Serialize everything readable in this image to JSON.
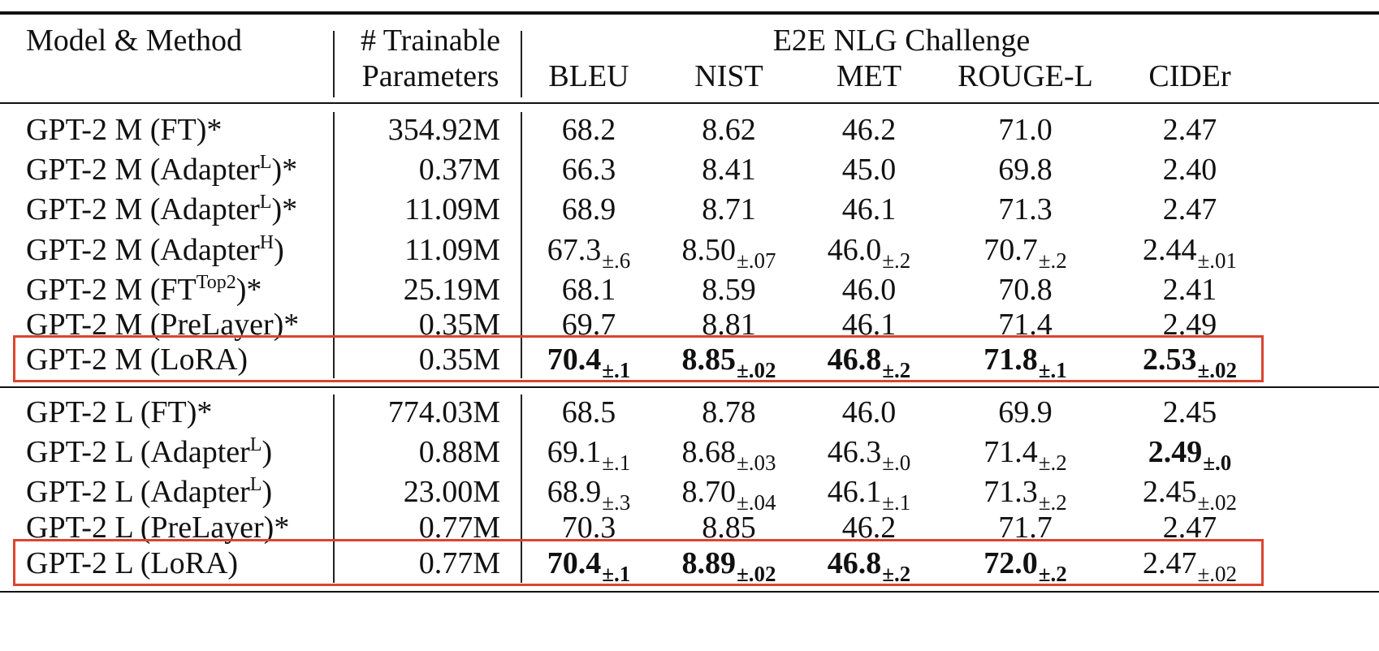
{
  "header": {
    "model_method": "Model & Method",
    "params_line1": "# Trainable",
    "params_line2": "Parameters",
    "group_title": "E2E NLG Challenge",
    "metrics": [
      "BLEU",
      "NIST",
      "MET",
      "ROUGE-L",
      "CIDEr"
    ]
  },
  "groups": [
    {
      "rows": [
        {
          "base": "GPT-2 M (FT",
          "sup": "",
          "tail": ")*",
          "params": "354.92M",
          "highlight": false,
          "vals": [
            {
              "m": "68.2",
              "s": "",
              "b": false
            },
            {
              "m": "8.62",
              "s": "",
              "b": false
            },
            {
              "m": "46.2",
              "s": "",
              "b": false
            },
            {
              "m": "71.0",
              "s": "",
              "b": false
            },
            {
              "m": "2.47",
              "s": "",
              "b": false
            }
          ]
        },
        {
          "base": "GPT-2 M (Adapter",
          "sup": "L",
          "tail": ")*",
          "params": "0.37M",
          "highlight": false,
          "vals": [
            {
              "m": "66.3",
              "s": "",
              "b": false
            },
            {
              "m": "8.41",
              "s": "",
              "b": false
            },
            {
              "m": "45.0",
              "s": "",
              "b": false
            },
            {
              "m": "69.8",
              "s": "",
              "b": false
            },
            {
              "m": "2.40",
              "s": "",
              "b": false
            }
          ]
        },
        {
          "base": "GPT-2 M (Adapter",
          "sup": "L",
          "tail": ")*",
          "params": "11.09M",
          "highlight": false,
          "vals": [
            {
              "m": "68.9",
              "s": "",
              "b": false
            },
            {
              "m": "8.71",
              "s": "",
              "b": false
            },
            {
              "m": "46.1",
              "s": "",
              "b": false
            },
            {
              "m": "71.3",
              "s": "",
              "b": false
            },
            {
              "m": "2.47",
              "s": "",
              "b": false
            }
          ]
        },
        {
          "base": "GPT-2 M (Adapter",
          "sup": "H",
          "tail": ")",
          "params": "11.09M",
          "highlight": false,
          "vals": [
            {
              "m": "67.3",
              "s": "±.6",
              "b": false
            },
            {
              "m": "8.50",
              "s": "±.07",
              "b": false
            },
            {
              "m": "46.0",
              "s": "±.2",
              "b": false
            },
            {
              "m": "70.7",
              "s": "±.2",
              "b": false
            },
            {
              "m": "2.44",
              "s": "±.01",
              "b": false
            }
          ]
        },
        {
          "base": "GPT-2 M (FT",
          "sup": "Top2",
          "tail": ")*",
          "params": "25.19M",
          "highlight": false,
          "vals": [
            {
              "m": "68.1",
              "s": "",
              "b": false
            },
            {
              "m": "8.59",
              "s": "",
              "b": false
            },
            {
              "m": "46.0",
              "s": "",
              "b": false
            },
            {
              "m": "70.8",
              "s": "",
              "b": false
            },
            {
              "m": "2.41",
              "s": "",
              "b": false
            }
          ]
        },
        {
          "base": "GPT-2 M (PreLayer",
          "sup": "",
          "tail": ")*",
          "params": "0.35M",
          "highlight": false,
          "vals": [
            {
              "m": "69.7",
              "s": "",
              "b": false
            },
            {
              "m": "8.81",
              "s": "",
              "b": false
            },
            {
              "m": "46.1",
              "s": "",
              "b": false
            },
            {
              "m": "71.4",
              "s": "",
              "b": false
            },
            {
              "m": "2.49",
              "s": "",
              "b": false
            }
          ]
        },
        {
          "base": "GPT-2 M (LoRA",
          "sup": "",
          "tail": ")",
          "params": "0.35M",
          "highlight": true,
          "vals": [
            {
              "m": "70.4",
              "s": "±.1",
              "b": true
            },
            {
              "m": "8.85",
              "s": "±.02",
              "b": true
            },
            {
              "m": "46.8",
              "s": "±.2",
              "b": true
            },
            {
              "m": "71.8",
              "s": "±.1",
              "b": true
            },
            {
              "m": "2.53",
              "s": "±.02",
              "b": true
            }
          ]
        }
      ]
    },
    {
      "rows": [
        {
          "base": "GPT-2 L (FT",
          "sup": "",
          "tail": ")*",
          "params": "774.03M",
          "highlight": false,
          "vals": [
            {
              "m": "68.5",
              "s": "",
              "b": false
            },
            {
              "m": "8.78",
              "s": "",
              "b": false
            },
            {
              "m": "46.0",
              "s": "",
              "b": false
            },
            {
              "m": "69.9",
              "s": "",
              "b": false
            },
            {
              "m": "2.45",
              "s": "",
              "b": false
            }
          ]
        },
        {
          "base": "GPT-2 L (Adapter",
          "sup": "L",
          "tail": ")",
          "params": "0.88M",
          "highlight": false,
          "vals": [
            {
              "m": "69.1",
              "s": "±.1",
              "b": false
            },
            {
              "m": "8.68",
              "s": "±.03",
              "b": false
            },
            {
              "m": "46.3",
              "s": "±.0",
              "b": false
            },
            {
              "m": "71.4",
              "s": "±.2",
              "b": false
            },
            {
              "m": "2.49",
              "s": "±.0",
              "b": true
            }
          ]
        },
        {
          "base": "GPT-2 L (Adapter",
          "sup": "L",
          "tail": ")",
          "params": "23.00M",
          "highlight": false,
          "vals": [
            {
              "m": "68.9",
              "s": "±.3",
              "b": false
            },
            {
              "m": "8.70",
              "s": "±.04",
              "b": false
            },
            {
              "m": "46.1",
              "s": "±.1",
              "b": false
            },
            {
              "m": "71.3",
              "s": "±.2",
              "b": false
            },
            {
              "m": "2.45",
              "s": "±.02",
              "b": false
            }
          ]
        },
        {
          "base": "GPT-2 L (PreLayer",
          "sup": "",
          "tail": ")*",
          "params": "0.77M",
          "highlight": false,
          "vals": [
            {
              "m": "70.3",
              "s": "",
              "b": false
            },
            {
              "m": "8.85",
              "s": "",
              "b": false
            },
            {
              "m": "46.2",
              "s": "",
              "b": false
            },
            {
              "m": "71.7",
              "s": "",
              "b": false
            },
            {
              "m": "2.47",
              "s": "",
              "b": false
            }
          ]
        },
        {
          "base": "GPT-2 L (LoRA",
          "sup": "",
          "tail": ")",
          "params": "0.77M",
          "highlight": true,
          "vals": [
            {
              "m": "70.4",
              "s": "±.1",
              "b": true
            },
            {
              "m": "8.89",
              "s": "±.02",
              "b": true
            },
            {
              "m": "46.8",
              "s": "±.2",
              "b": true
            },
            {
              "m": "72.0",
              "s": "±.2",
              "b": true
            },
            {
              "m": "2.47",
              "s": "±.02",
              "b": false
            }
          ]
        }
      ]
    }
  ]
}
